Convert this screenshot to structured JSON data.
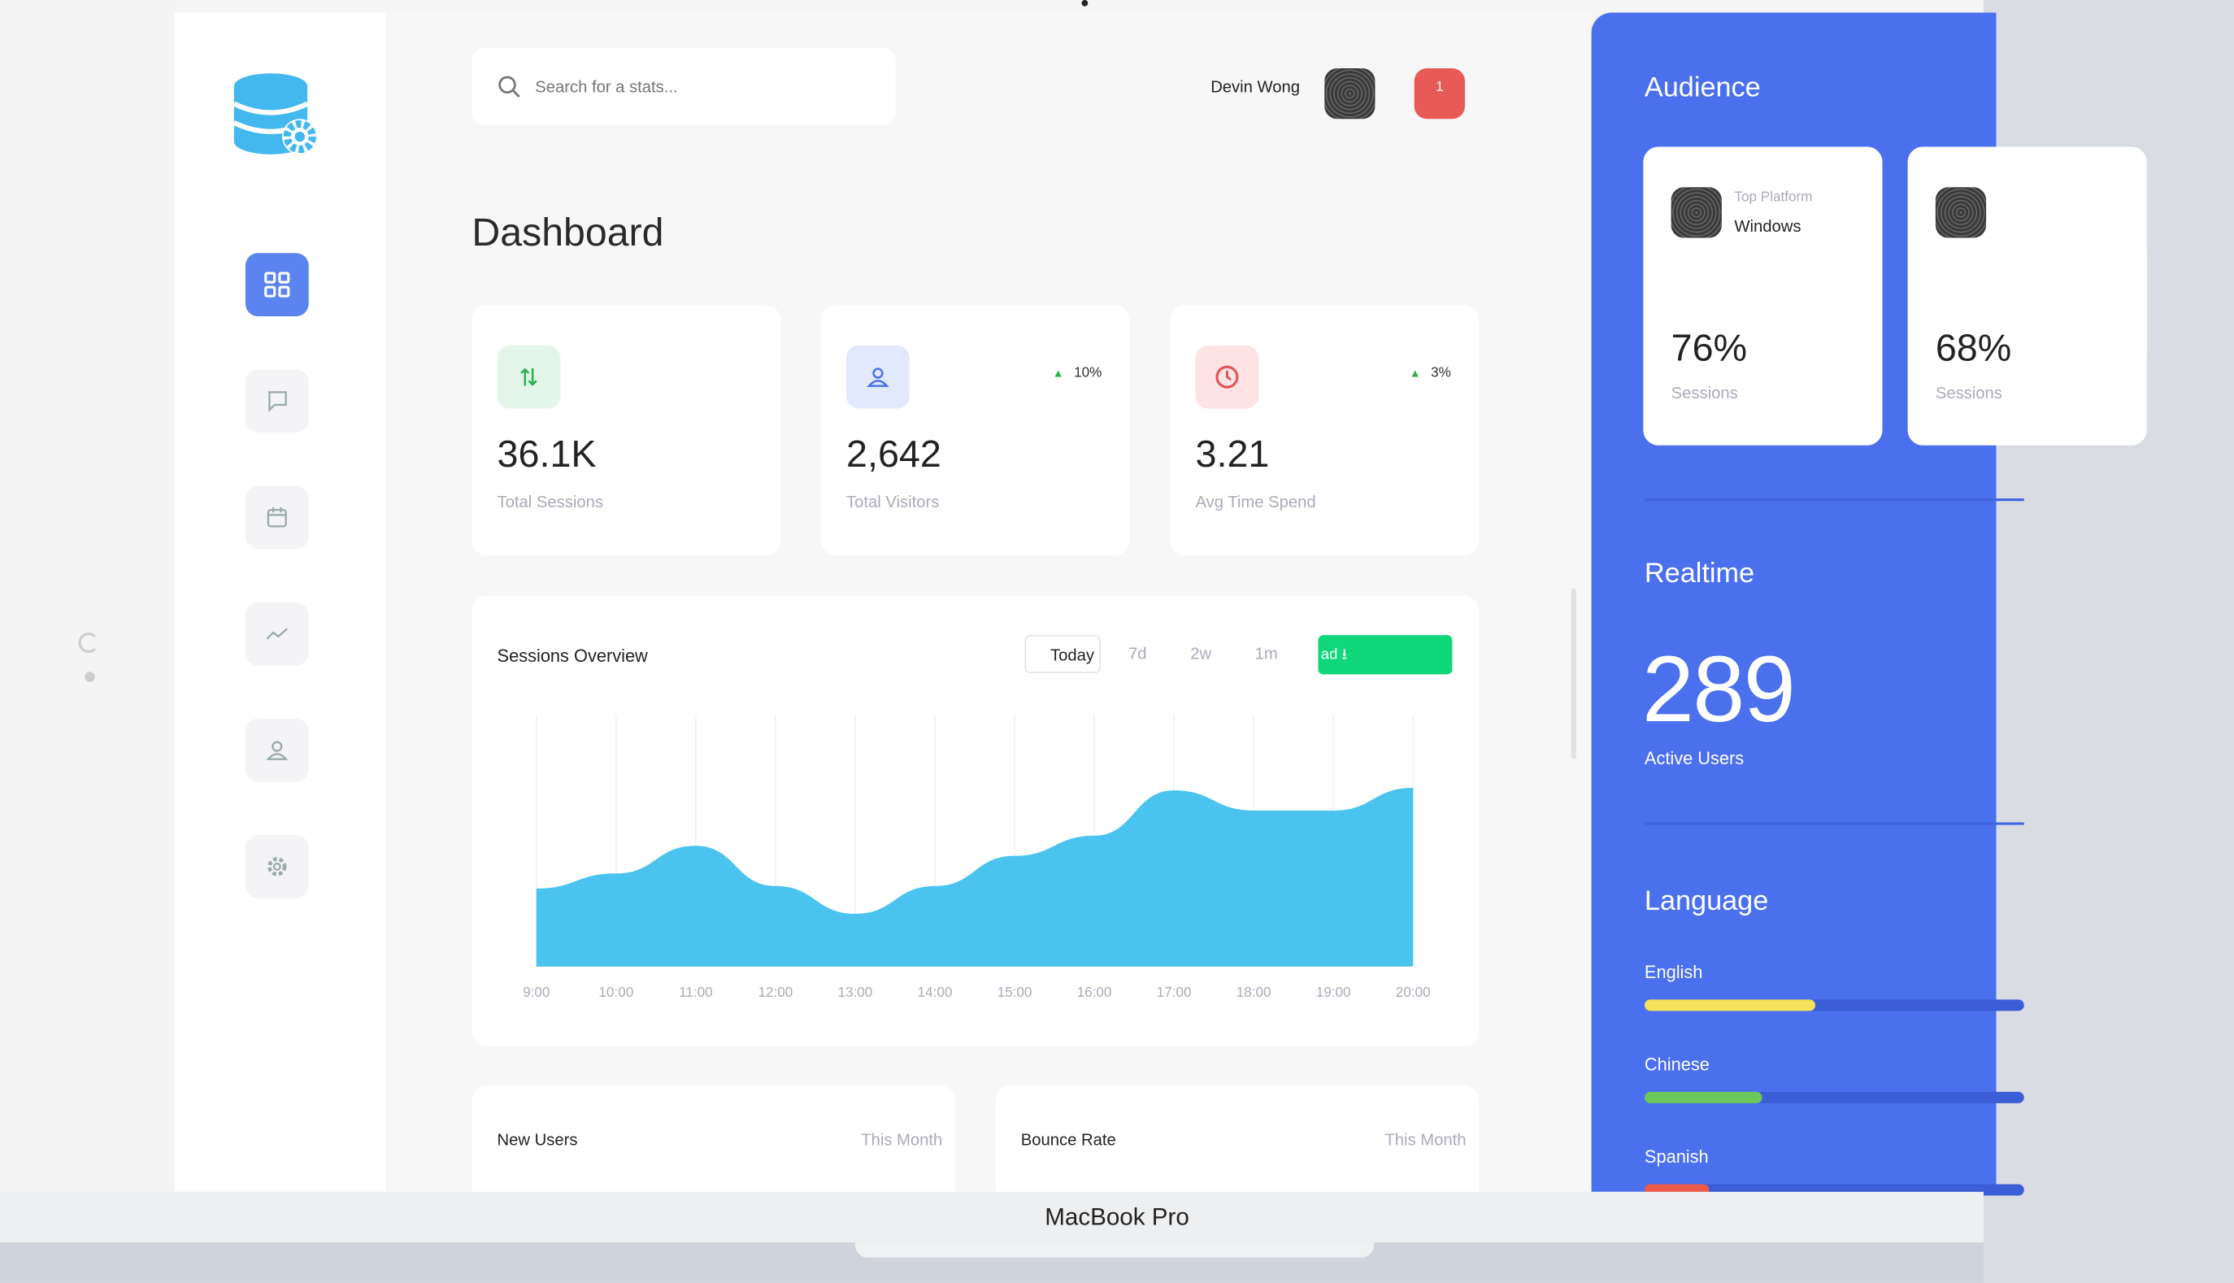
{
  "header": {
    "search_placeholder": "Search for a stats...",
    "user_name": "Devin Wong",
    "notification_count": "1"
  },
  "page_title": "Dashboard",
  "stats": [
    {
      "value": "36.1K",
      "label": "Total Sessions",
      "change": "",
      "icon": "arrows-up-down-icon",
      "color": "#2bb04f"
    },
    {
      "value": "2,642",
      "label": "Total Visitors",
      "change": "10%",
      "icon": "user-icon",
      "color": "#4a70ee"
    },
    {
      "value": "3.21",
      "label": "Avg Time Spend",
      "change": "3%",
      "icon": "clock-icon",
      "color": "#e05555"
    }
  ],
  "sessions": {
    "title": "Sessions Overview",
    "ranges": [
      "Today",
      "7d",
      "2w",
      "1m"
    ],
    "selected_range": "Today",
    "download_label": "ad"
  },
  "chart_data": {
    "type": "area",
    "x": [
      "9:00",
      "10:00",
      "11:00",
      "12:00",
      "13:00",
      "14:00",
      "15:00",
      "16:00",
      "17:00",
      "18:00",
      "19:00",
      "20:00"
    ],
    "values": [
      31,
      37,
      48,
      32,
      21,
      32,
      44,
      52,
      70,
      62,
      62,
      71
    ],
    "ylim": [
      0,
      100
    ],
    "grid": "vertical",
    "color": "#4ac3ef"
  },
  "bottom_cards": [
    {
      "title": "New Users",
      "period": "This Month"
    },
    {
      "title": "Bounce Rate",
      "period": "This Month"
    }
  ],
  "audience": {
    "title": "Audience",
    "cards": [
      {
        "caption": "Top Platform",
        "platform": "Windows",
        "value": "76%",
        "label": "Sessions"
      },
      {
        "caption": "",
        "platform": "",
        "value": "68%",
        "label": "Sessions"
      }
    ]
  },
  "realtime": {
    "title": "Realtime",
    "value": "289",
    "label": "Active Users"
  },
  "language": {
    "title": "Language",
    "items": [
      {
        "name": "English",
        "percent": 45,
        "color": "#f5e15a"
      },
      {
        "name": "Chinese",
        "percent": 31,
        "color": "#6cc85a"
      },
      {
        "name": "Spanish",
        "percent": 17,
        "color": "#ec5a4a"
      }
    ]
  },
  "device_label": "MacBook Pro"
}
